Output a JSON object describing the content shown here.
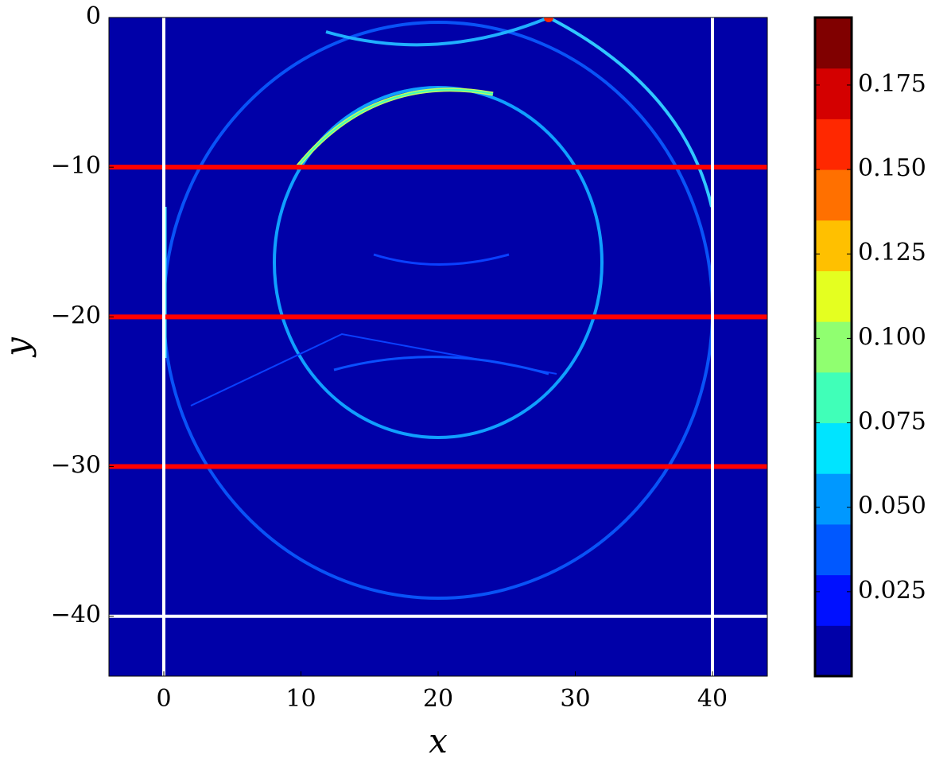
{
  "chart_data": {
    "type": "heatmap",
    "x_label": "x",
    "y_label": "y",
    "xlim": [
      -4,
      44
    ],
    "ylim": [
      -44,
      0
    ],
    "xticks": [
      0,
      10,
      20,
      30,
      40
    ],
    "yticks": [
      0,
      {
        "value": -10,
        "label": "−10"
      },
      {
        "value": -20,
        "label": "−20"
      },
      {
        "value": -30,
        "label": "−30"
      },
      {
        "value": -40,
        "label": "−40"
      }
    ],
    "background_color": "#0000a8",
    "lines": [
      {
        "orientation": "h",
        "value": -10,
        "color": "#ff0000"
      },
      {
        "orientation": "h",
        "value": -20,
        "color": "#ff0000"
      },
      {
        "orientation": "h",
        "value": -30,
        "color": "#ff0000"
      },
      {
        "orientation": "h",
        "value": -40,
        "color": "#ffffff"
      },
      {
        "orientation": "v",
        "value": 0,
        "color": "#ffffff"
      },
      {
        "orientation": "v",
        "value": 40,
        "color": "#ffffff"
      }
    ],
    "colorbar": {
      "clim": [
        0,
        0.195
      ],
      "colors": [
        "#0000a8",
        "#0010ff",
        "#0058ff",
        "#0098ff",
        "#00e4ff",
        "#40ffb8",
        "#90ff70",
        "#e4ff20",
        "#ffc000",
        "#ff7000",
        "#ff2800",
        "#d40000",
        "#800000"
      ],
      "ticks": [
        0.025,
        {
          "value": 0.05,
          "label": "0.050"
        },
        0.075,
        {
          "value": 0.1,
          "label": "0.100"
        },
        0.125,
        {
          "value": 0.15,
          "label": "0.150"
        },
        0.175
      ]
    }
  }
}
